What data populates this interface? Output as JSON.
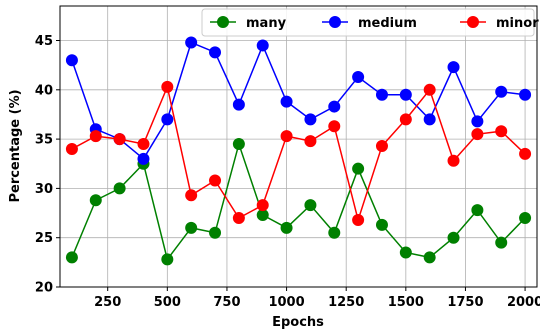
{
  "chart_data": {
    "type": "line",
    "xlabel": "Epochs",
    "ylabel": "Percentage (%)",
    "xlim": [
      50,
      2050
    ],
    "ylim": [
      20,
      48.5
    ],
    "xticks": [
      250,
      500,
      750,
      1000,
      1250,
      1500,
      1750,
      2000
    ],
    "yticks": [
      20,
      25,
      30,
      35,
      40,
      45
    ],
    "grid": true,
    "legend_position": "top-right",
    "x": [
      100,
      200,
      300,
      400,
      500,
      600,
      700,
      800,
      900,
      1000,
      1100,
      1200,
      1300,
      1400,
      1500,
      1600,
      1700,
      1800,
      1900,
      2000
    ],
    "series": [
      {
        "name": "many",
        "color": "#008000",
        "values": [
          23.0,
          28.8,
          30.0,
          32.5,
          22.8,
          26.0,
          25.5,
          34.5,
          27.3,
          26.0,
          28.3,
          25.5,
          32.0,
          26.3,
          23.5,
          23.0,
          25.0,
          27.8,
          24.5,
          27.0
        ]
      },
      {
        "name": "medium",
        "color": "#0000ff",
        "values": [
          43.0,
          36.0,
          35.0,
          33.0,
          37.0,
          44.8,
          43.8,
          38.5,
          44.5,
          38.8,
          37.0,
          38.3,
          41.3,
          39.5,
          39.5,
          37.0,
          42.3,
          36.8,
          39.8,
          39.5
        ]
      },
      {
        "name": "minor",
        "color": "#ff0000",
        "values": [
          34.0,
          35.3,
          35.0,
          34.5,
          40.3,
          29.3,
          30.8,
          27.0,
          28.3,
          35.3,
          34.8,
          36.3,
          26.8,
          34.3,
          37.0,
          40.0,
          32.8,
          35.5,
          35.8,
          33.5
        ]
      }
    ]
  }
}
